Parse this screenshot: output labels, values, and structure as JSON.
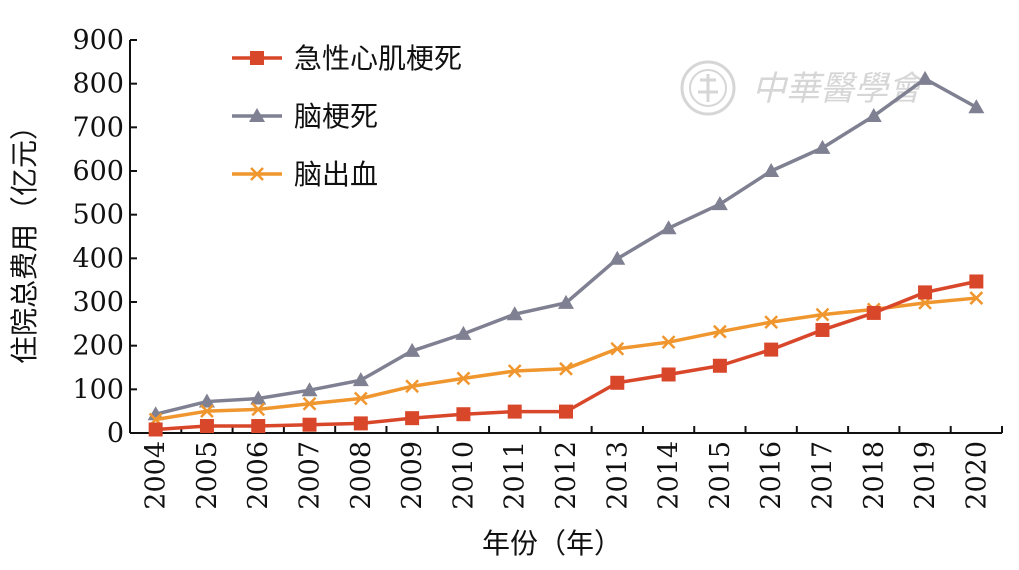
{
  "chart_data": {
    "type": "line",
    "title": "",
    "xlabel": "年份（年）",
    "ylabel": "住院总费用（亿元）",
    "ylim": [
      0,
      900
    ],
    "yticks": [
      0,
      100,
      200,
      300,
      400,
      500,
      600,
      700,
      800,
      900
    ],
    "categories": [
      "2004",
      "2005",
      "2006",
      "2007",
      "2008",
      "2009",
      "2010",
      "2011",
      "2012",
      "2013",
      "2014",
      "2015",
      "2016",
      "2017",
      "2018",
      "2019",
      "2020"
    ],
    "legend_position": "top-left",
    "grid": false,
    "series": [
      {
        "name": "急性心肌梗死",
        "color": "#d9472b",
        "marker": "square",
        "values": [
          8,
          16,
          16,
          19,
          22,
          34,
          43,
          49,
          49,
          115,
          134,
          154,
          191,
          236,
          275,
          322,
          347
        ]
      },
      {
        "name": "脑梗死",
        "color": "#7f8091",
        "marker": "triangle",
        "values": [
          43,
          72,
          79,
          98,
          121,
          188,
          227,
          272,
          298,
          399,
          469,
          524,
          600,
          653,
          726,
          811,
          746
        ]
      },
      {
        "name": "脑出血",
        "color": "#f0962e",
        "marker": "x",
        "values": [
          31,
          50,
          54,
          67,
          79,
          107,
          125,
          142,
          147,
          193,
          208,
          232,
          254,
          271,
          283,
          298,
          309
        ]
      }
    ]
  },
  "watermark": {
    "text": "中華醫學會",
    "color": "#d6d6d6"
  }
}
